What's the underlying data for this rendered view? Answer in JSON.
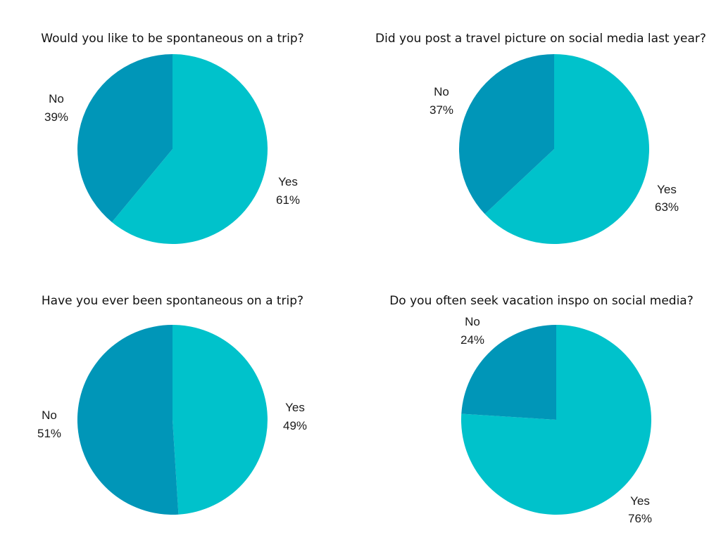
{
  "colors": {
    "yes": "#00c2cb",
    "no": "#0096b8"
  },
  "chart_data": [
    {
      "type": "pie",
      "title": "Would you like to be spontaneous on a trip?",
      "slices": [
        {
          "label": "Yes",
          "value": 61,
          "value_label": "61%"
        },
        {
          "label": "No",
          "value": 39,
          "value_label": "39%"
        }
      ]
    },
    {
      "type": "pie",
      "title": "Did you post a travel picture on social media last year?",
      "slices": [
        {
          "label": "Yes",
          "value": 63,
          "value_label": "63%"
        },
        {
          "label": "No",
          "value": 37,
          "value_label": "37%"
        }
      ]
    },
    {
      "type": "pie",
      "title": "Have you ever been spontaneous on a trip?",
      "slices": [
        {
          "label": "Yes",
          "value": 49,
          "value_label": "49%"
        },
        {
          "label": "No",
          "value": 51,
          "value_label": "51%"
        }
      ]
    },
    {
      "type": "pie",
      "title": "Do you often seek vacation inspo on social media?",
      "slices": [
        {
          "label": "Yes",
          "value": 76,
          "value_label": "76%"
        },
        {
          "label": "No",
          "value": 24,
          "value_label": "24%"
        }
      ]
    }
  ]
}
